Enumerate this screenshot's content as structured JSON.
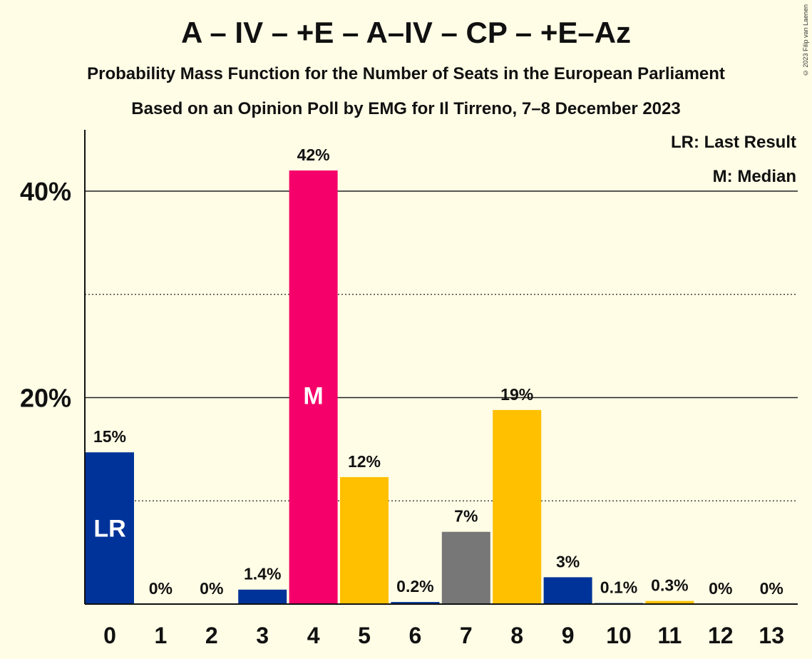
{
  "chart_data": {
    "type": "bar",
    "title": "A – IV – +E – A–IV – CP – +E–Az",
    "subtitle": "Probability Mass Function for the Number of Seats in the European Parliament",
    "subtitle2": "Based on an Opinion Poll by EMG for Il Tirreno, 7–8 December 2023",
    "categories": [
      "0",
      "1",
      "2",
      "3",
      "4",
      "5",
      "6",
      "7",
      "8",
      "9",
      "10",
      "11",
      "12",
      "13"
    ],
    "values": [
      14.7,
      0,
      0,
      1.4,
      42,
      12.3,
      0.2,
      7,
      18.8,
      2.6,
      0.1,
      0.3,
      0,
      0
    ],
    "value_labels": [
      "15%",
      "0%",
      "0%",
      "1.4%",
      "42%",
      "12%",
      "0.2%",
      "7%",
      "19%",
      "3%",
      "0.1%",
      "0.3%",
      "0%",
      "0%"
    ],
    "bar_colors": [
      "#003399",
      "#003399",
      "#003399",
      "#003399",
      "#F5006A",
      "#FFC000",
      "#003399",
      "#777777",
      "#FFC000",
      "#003399",
      "#003399",
      "#FFC000",
      "#003399",
      "#003399"
    ],
    "bar_marks": {
      "0": "LR",
      "4": "M"
    },
    "ylim": [
      0,
      46
    ],
    "yticks": [
      {
        "value": 20,
        "label": "20%"
      },
      {
        "value": 40,
        "label": "40%"
      }
    ],
    "minor_gridlines": [
      10,
      30
    ],
    "legend": [
      "LR: Last Result",
      "M: Median"
    ],
    "legend_position": "top-right",
    "xlabel": "",
    "ylabel": ""
  },
  "copyright": "© 2023 Filip van Laenen"
}
